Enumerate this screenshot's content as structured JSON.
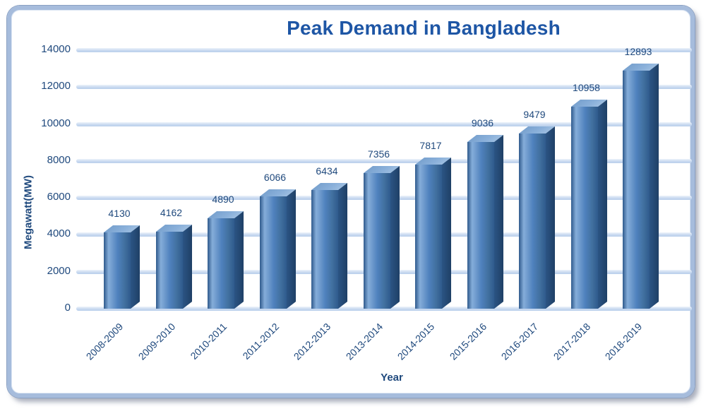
{
  "chart_data": {
    "type": "bar",
    "title": "Peak Demand in Bangladesh",
    "xlabel": "Year",
    "ylabel": "Megawatt(MW)",
    "categories": [
      "2008-2009",
      "2009-2010",
      "2010-2011",
      "2011-2012",
      "2012-2013",
      "2013-2014",
      "2014-2015",
      "2015-2016",
      "2016-2017",
      "2017-2018",
      "2018-2019"
    ],
    "values": [
      4130,
      4162,
      4890,
      6066,
      6434,
      7356,
      7817,
      9036,
      9479,
      10958,
      12893
    ],
    "ylim": [
      0,
      14000
    ],
    "yticks": [
      0,
      2000,
      4000,
      6000,
      8000,
      10000,
      12000,
      14000
    ],
    "grid": true,
    "legend": "none",
    "bar_style": "3d",
    "colors": {
      "title": "#1e56a5",
      "text": "#1f497d",
      "bar_main": "#4f81bd",
      "bar_light": "#85add9",
      "bar_dark": "#2f5a8c",
      "bar_top": "#8ab0da",
      "bar_side": "#2b5484",
      "gridline": "#c9daf0",
      "frame_border": "#a6bcdc",
      "background": "#ffffff"
    }
  }
}
